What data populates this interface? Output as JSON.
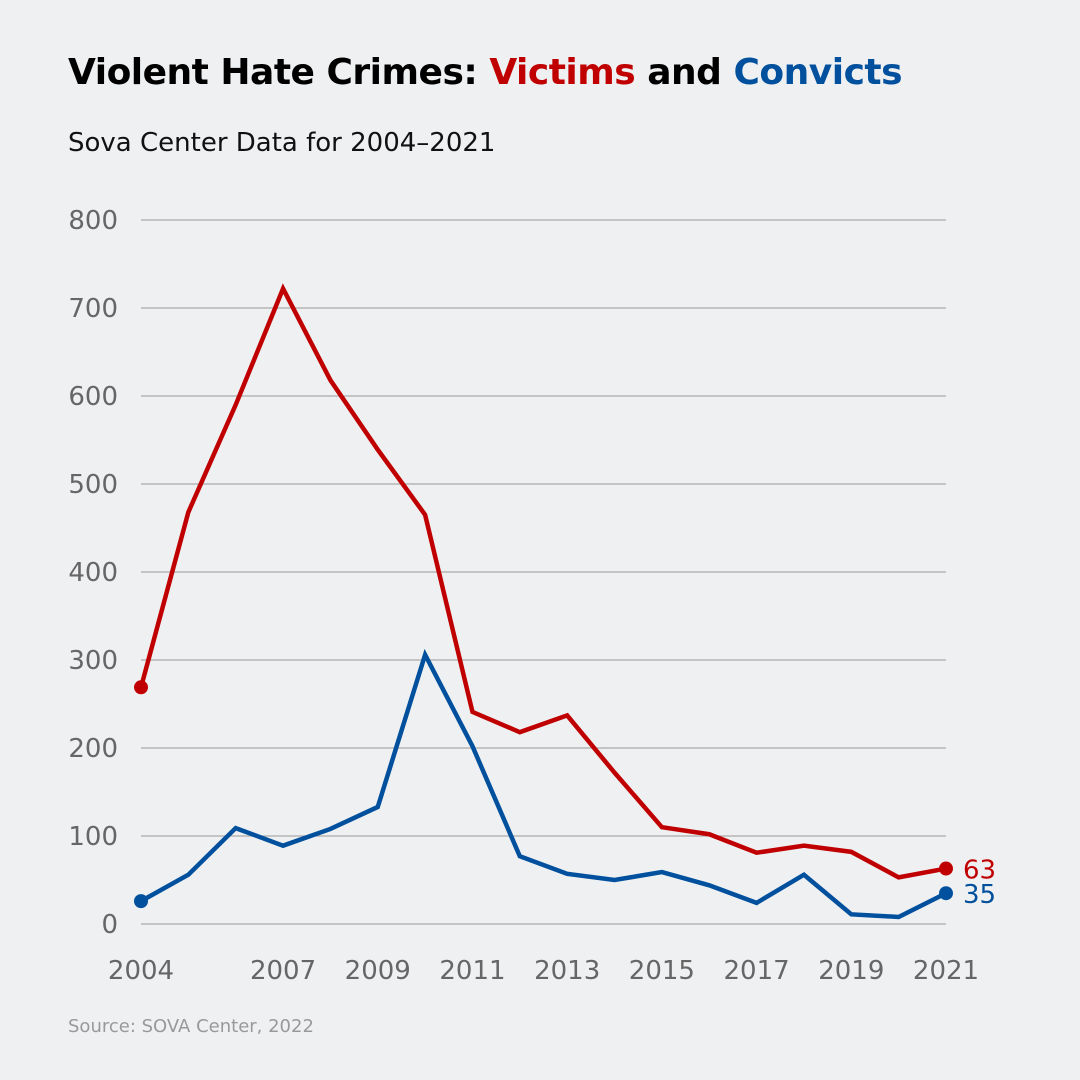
{
  "chart_data": {
    "type": "line",
    "title_parts": {
      "prefix": "Violent Hate Crimes: ",
      "victims": "Victims",
      "and": " and ",
      "convicts": "Convicts"
    },
    "subtitle": "Sova Center Data for 2004–2021",
    "source": "Source: SOVA Center, 2022",
    "x": [
      2004,
      2005,
      2006,
      2007,
      2008,
      2009,
      2010,
      2011,
      2012,
      2013,
      2014,
      2015,
      2016,
      2017,
      2018,
      2019,
      2020,
      2021
    ],
    "x_tick_labels": [
      "2004",
      "2007",
      "2009",
      "2011",
      "2013",
      "2015",
      "2017",
      "2019",
      "2021"
    ],
    "y_tick_labels": [
      "0",
      "100",
      "200",
      "300",
      "400",
      "500",
      "600",
      "700",
      "800"
    ],
    "ylim": [
      0,
      800
    ],
    "grid": true,
    "series": [
      {
        "name": "Victims",
        "color": "#c00000",
        "end_label": "63",
        "values": [
          269,
          468,
          590,
          722,
          618,
          539,
          465,
          241,
          218,
          237,
          172,
          110,
          102,
          81,
          89,
          82,
          53,
          63
        ]
      },
      {
        "name": "Convicts",
        "color": "#00509d",
        "end_label": "35",
        "values": [
          26,
          56,
          109,
          89,
          108,
          133,
          306,
          202,
          77,
          57,
          50,
          59,
          44,
          24,
          56,
          11,
          8,
          35
        ]
      }
    ]
  }
}
